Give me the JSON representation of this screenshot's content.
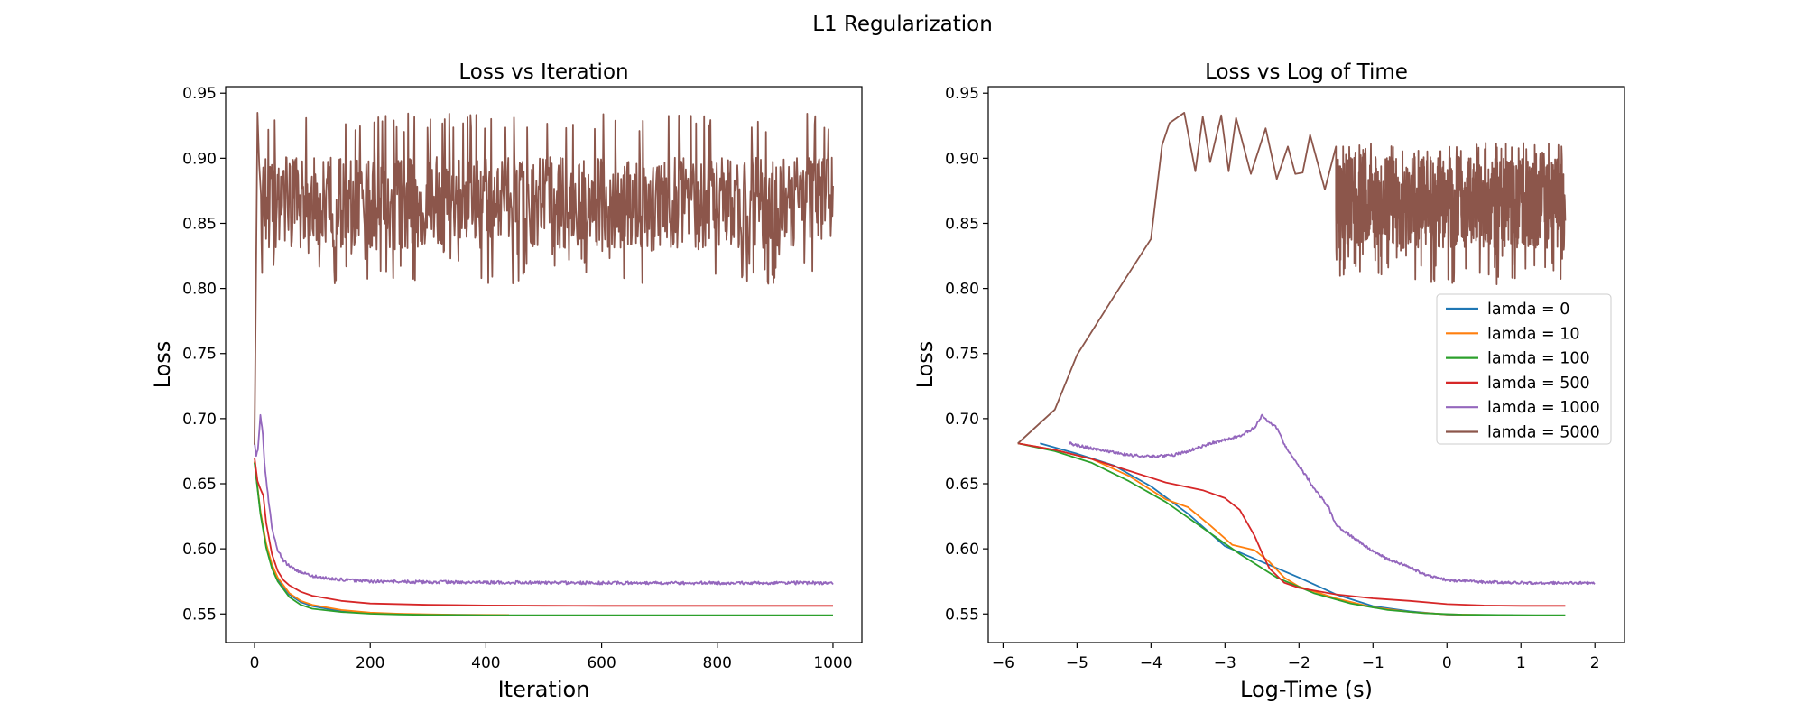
{
  "figure": {
    "suptitle": "L1 Regularization"
  },
  "chart_data": [
    {
      "type": "line",
      "title": "Loss vs Iteration",
      "xlabel": "Iteration",
      "ylabel": "Loss",
      "xlim": [
        -50,
        1050
      ],
      "ylim": [
        0.528,
        0.955
      ],
      "xticks": [
        0,
        200,
        400,
        600,
        800,
        1000
      ],
      "xtick_labels": [
        "0",
        "200",
        "400",
        "600",
        "800",
        "1000"
      ],
      "yticks": [
        0.55,
        0.6,
        0.65,
        0.7,
        0.75,
        0.8,
        0.85,
        0.9,
        0.95
      ],
      "ytick_labels": [
        "0.55",
        "0.60",
        "0.65",
        "0.70",
        "0.75",
        "0.80",
        "0.85",
        "0.90",
        "0.95"
      ],
      "grid": false,
      "legend": false,
      "series": [
        {
          "name": "lamda = 0",
          "color": "#1f77b4",
          "x": [
            0,
            10,
            20,
            30,
            40,
            60,
            80,
            100,
            150,
            200,
            250,
            300,
            350,
            400,
            440
          ],
          "y": [
            0.667,
            0.628,
            0.603,
            0.587,
            0.577,
            0.565,
            0.559,
            0.556,
            0.552,
            0.5505,
            0.55,
            0.5495,
            0.5493,
            0.5492,
            0.5492
          ]
        },
        {
          "name": "lamda = 10",
          "color": "#ff7f0e",
          "x": [
            0,
            10,
            20,
            30,
            40,
            60,
            80,
            100,
            150,
            200,
            250,
            300,
            350,
            400,
            440
          ],
          "y": [
            0.667,
            0.629,
            0.604,
            0.588,
            0.578,
            0.566,
            0.56,
            0.557,
            0.553,
            0.551,
            0.5502,
            0.5497,
            0.5494,
            0.5493,
            0.5492
          ]
        },
        {
          "name": "lamda = 100",
          "color": "#2ca02c",
          "x": [
            0,
            10,
            20,
            30,
            40,
            60,
            80,
            100,
            150,
            200,
            250,
            300,
            400,
            500,
            600,
            700,
            800,
            900,
            1000
          ],
          "y": [
            0.666,
            0.627,
            0.601,
            0.585,
            0.575,
            0.563,
            0.557,
            0.554,
            0.5515,
            0.5502,
            0.5496,
            0.5493,
            0.5491,
            0.549,
            0.549,
            0.549,
            0.549,
            0.549,
            0.549
          ]
        },
        {
          "name": "lamda = 500",
          "color": "#d62728",
          "x": [
            0,
            5,
            10,
            15,
            20,
            30,
            40,
            50,
            60,
            80,
            100,
            150,
            200,
            300,
            400,
            500,
            600,
            700,
            800,
            900,
            1000
          ],
          "y": [
            0.67,
            0.652,
            0.646,
            0.641,
            0.62,
            0.596,
            0.583,
            0.576,
            0.572,
            0.567,
            0.564,
            0.56,
            0.558,
            0.557,
            0.5565,
            0.5563,
            0.5562,
            0.5562,
            0.5562,
            0.5562,
            0.5562
          ]
        },
        {
          "name": "lamda = 1000",
          "color": "#9467bd",
          "x": [
            0,
            3,
            6,
            10,
            14,
            18,
            24,
            30,
            40,
            50,
            60,
            80,
            100,
            130,
            160,
            200,
            300,
            400,
            500,
            600,
            700,
            800,
            900,
            1000
          ],
          "y": [
            0.681,
            0.672,
            0.676,
            0.702,
            0.69,
            0.661,
            0.638,
            0.616,
            0.599,
            0.591,
            0.587,
            0.582,
            0.579,
            0.577,
            0.576,
            0.575,
            0.5745,
            0.5742,
            0.574,
            0.5738,
            0.5738,
            0.5738,
            0.5738,
            0.5738
          ],
          "noise_amplitude": 0.0012
        },
        {
          "name": "lamda = 5000",
          "color": "#8c564b",
          "x_range": [
            0,
            1000
          ],
          "mean": 0.866,
          "min": 0.803,
          "max": 0.935,
          "peak": {
            "x": 5,
            "y": 0.935
          }
        }
      ]
    },
    {
      "type": "line",
      "title": "Loss vs Log of Time",
      "xlabel": "Log-Time (s)",
      "ylabel": "Loss",
      "xlim": [
        -6.2,
        2.4
      ],
      "ylim": [
        0.528,
        0.955
      ],
      "xticks": [
        -6,
        -5,
        -4,
        -3,
        -2,
        -1,
        0,
        1,
        2
      ],
      "xtick_labels": [
        "−6",
        "−5",
        "−4",
        "−3",
        "−2",
        "−1",
        "0",
        "1",
        "2"
      ],
      "yticks": [
        0.55,
        0.6,
        0.65,
        0.7,
        0.75,
        0.8,
        0.85,
        0.9,
        0.95
      ],
      "ytick_labels": [
        "0.55",
        "0.60",
        "0.65",
        "0.70",
        "0.75",
        "0.80",
        "0.85",
        "0.90",
        "0.95"
      ],
      "grid": false,
      "legend": "center-right",
      "series": [
        {
          "name": "lamda = 0",
          "color": "#1f77b4",
          "x": [
            -5.5,
            -5.0,
            -4.5,
            -4.0,
            -3.5,
            -3.0,
            -2.5,
            -2.0,
            -1.5,
            -1.0,
            -0.5,
            0.0,
            0.5,
            0.9
          ],
          "y": [
            0.681,
            0.673,
            0.664,
            0.648,
            0.627,
            0.602,
            0.59,
            0.578,
            0.565,
            0.556,
            0.552,
            0.5495,
            0.549,
            0.549
          ]
        },
        {
          "name": "lamda = 10",
          "color": "#ff7f0e",
          "x": [
            -5.8,
            -5.3,
            -4.8,
            -4.3,
            -3.8,
            -3.5,
            -3.2,
            -2.9,
            -2.6,
            -2.4,
            -2.2,
            -2.0,
            -1.5,
            -1.0,
            -0.5,
            0.0,
            0.5,
            0.8
          ],
          "y": [
            0.681,
            0.676,
            0.669,
            0.656,
            0.638,
            0.632,
            0.618,
            0.603,
            0.599,
            0.59,
            0.578,
            0.571,
            0.562,
            0.555,
            0.5515,
            0.5497,
            0.5492,
            0.5492
          ]
        },
        {
          "name": "lamda = 100",
          "color": "#2ca02c",
          "x": [
            -5.8,
            -5.3,
            -4.8,
            -4.3,
            -3.8,
            -3.3,
            -2.8,
            -2.3,
            -1.8,
            -1.3,
            -0.8,
            -0.3,
            0.2,
            0.7,
            1.2,
            1.6
          ],
          "y": [
            0.681,
            0.675,
            0.666,
            0.652,
            0.636,
            0.616,
            0.596,
            0.578,
            0.566,
            0.558,
            0.553,
            0.5505,
            0.5495,
            0.5492,
            0.549,
            0.549
          ]
        },
        {
          "name": "lamda = 500",
          "color": "#d62728",
          "x": [
            -5.8,
            -5.3,
            -4.8,
            -4.3,
            -3.8,
            -3.3,
            -3.0,
            -2.8,
            -2.6,
            -2.5,
            -2.4,
            -2.2,
            -2.0,
            -1.5,
            -1.0,
            -0.5,
            0.0,
            0.5,
            1.0,
            1.6
          ],
          "y": [
            0.681,
            0.676,
            0.669,
            0.66,
            0.651,
            0.645,
            0.639,
            0.63,
            0.61,
            0.597,
            0.585,
            0.574,
            0.57,
            0.565,
            0.562,
            0.56,
            0.5575,
            0.5565,
            0.5562,
            0.5562
          ]
        },
        {
          "name": "lamda = 1000",
          "color": "#9467bd",
          "x": [
            -5.1,
            -4.8,
            -4.5,
            -4.3,
            -4.0,
            -3.7,
            -3.5,
            -3.2,
            -2.9,
            -2.75,
            -2.6,
            -2.5,
            -2.4,
            -2.3,
            -2.2,
            -2.0,
            -1.8,
            -1.6,
            -1.5,
            -1.3,
            -1.0,
            -0.8,
            -0.5,
            -0.3,
            0.0,
            0.5,
            1.0,
            1.5,
            2.0
          ],
          "y": [
            0.681,
            0.677,
            0.674,
            0.672,
            0.671,
            0.672,
            0.675,
            0.681,
            0.685,
            0.688,
            0.693,
            0.702,
            0.697,
            0.693,
            0.68,
            0.664,
            0.647,
            0.632,
            0.618,
            0.61,
            0.598,
            0.592,
            0.586,
            0.58,
            0.576,
            0.5745,
            0.574,
            0.5738,
            0.5738
          ],
          "noise_amplitude": 0.001
        },
        {
          "name": "lamda = 5000",
          "color": "#8c564b",
          "x": [
            -5.8,
            -5.3,
            -5.0,
            -4.5,
            -4.0,
            -3.85,
            -3.75,
            -3.55,
            -3.4,
            -3.3,
            -3.2,
            -3.05,
            -2.95,
            -2.85,
            -2.65,
            -2.45,
            -2.3,
            -2.15,
            -2.05,
            -1.95,
            -1.85,
            -1.65,
            -1.5
          ],
          "y": [
            0.681,
            0.707,
            0.749,
            0.794,
            0.838,
            0.91,
            0.927,
            0.935,
            0.89,
            0.932,
            0.897,
            0.933,
            0.89,
            0.931,
            0.888,
            0.923,
            0.884,
            0.909,
            0.888,
            0.889,
            0.918,
            0.876,
            0.909
          ],
          "noisy_segment": {
            "x_range": [
              -1.5,
              1.6
            ],
            "mean": 0.866,
            "min": 0.803,
            "max": 0.912
          }
        }
      ]
    }
  ]
}
